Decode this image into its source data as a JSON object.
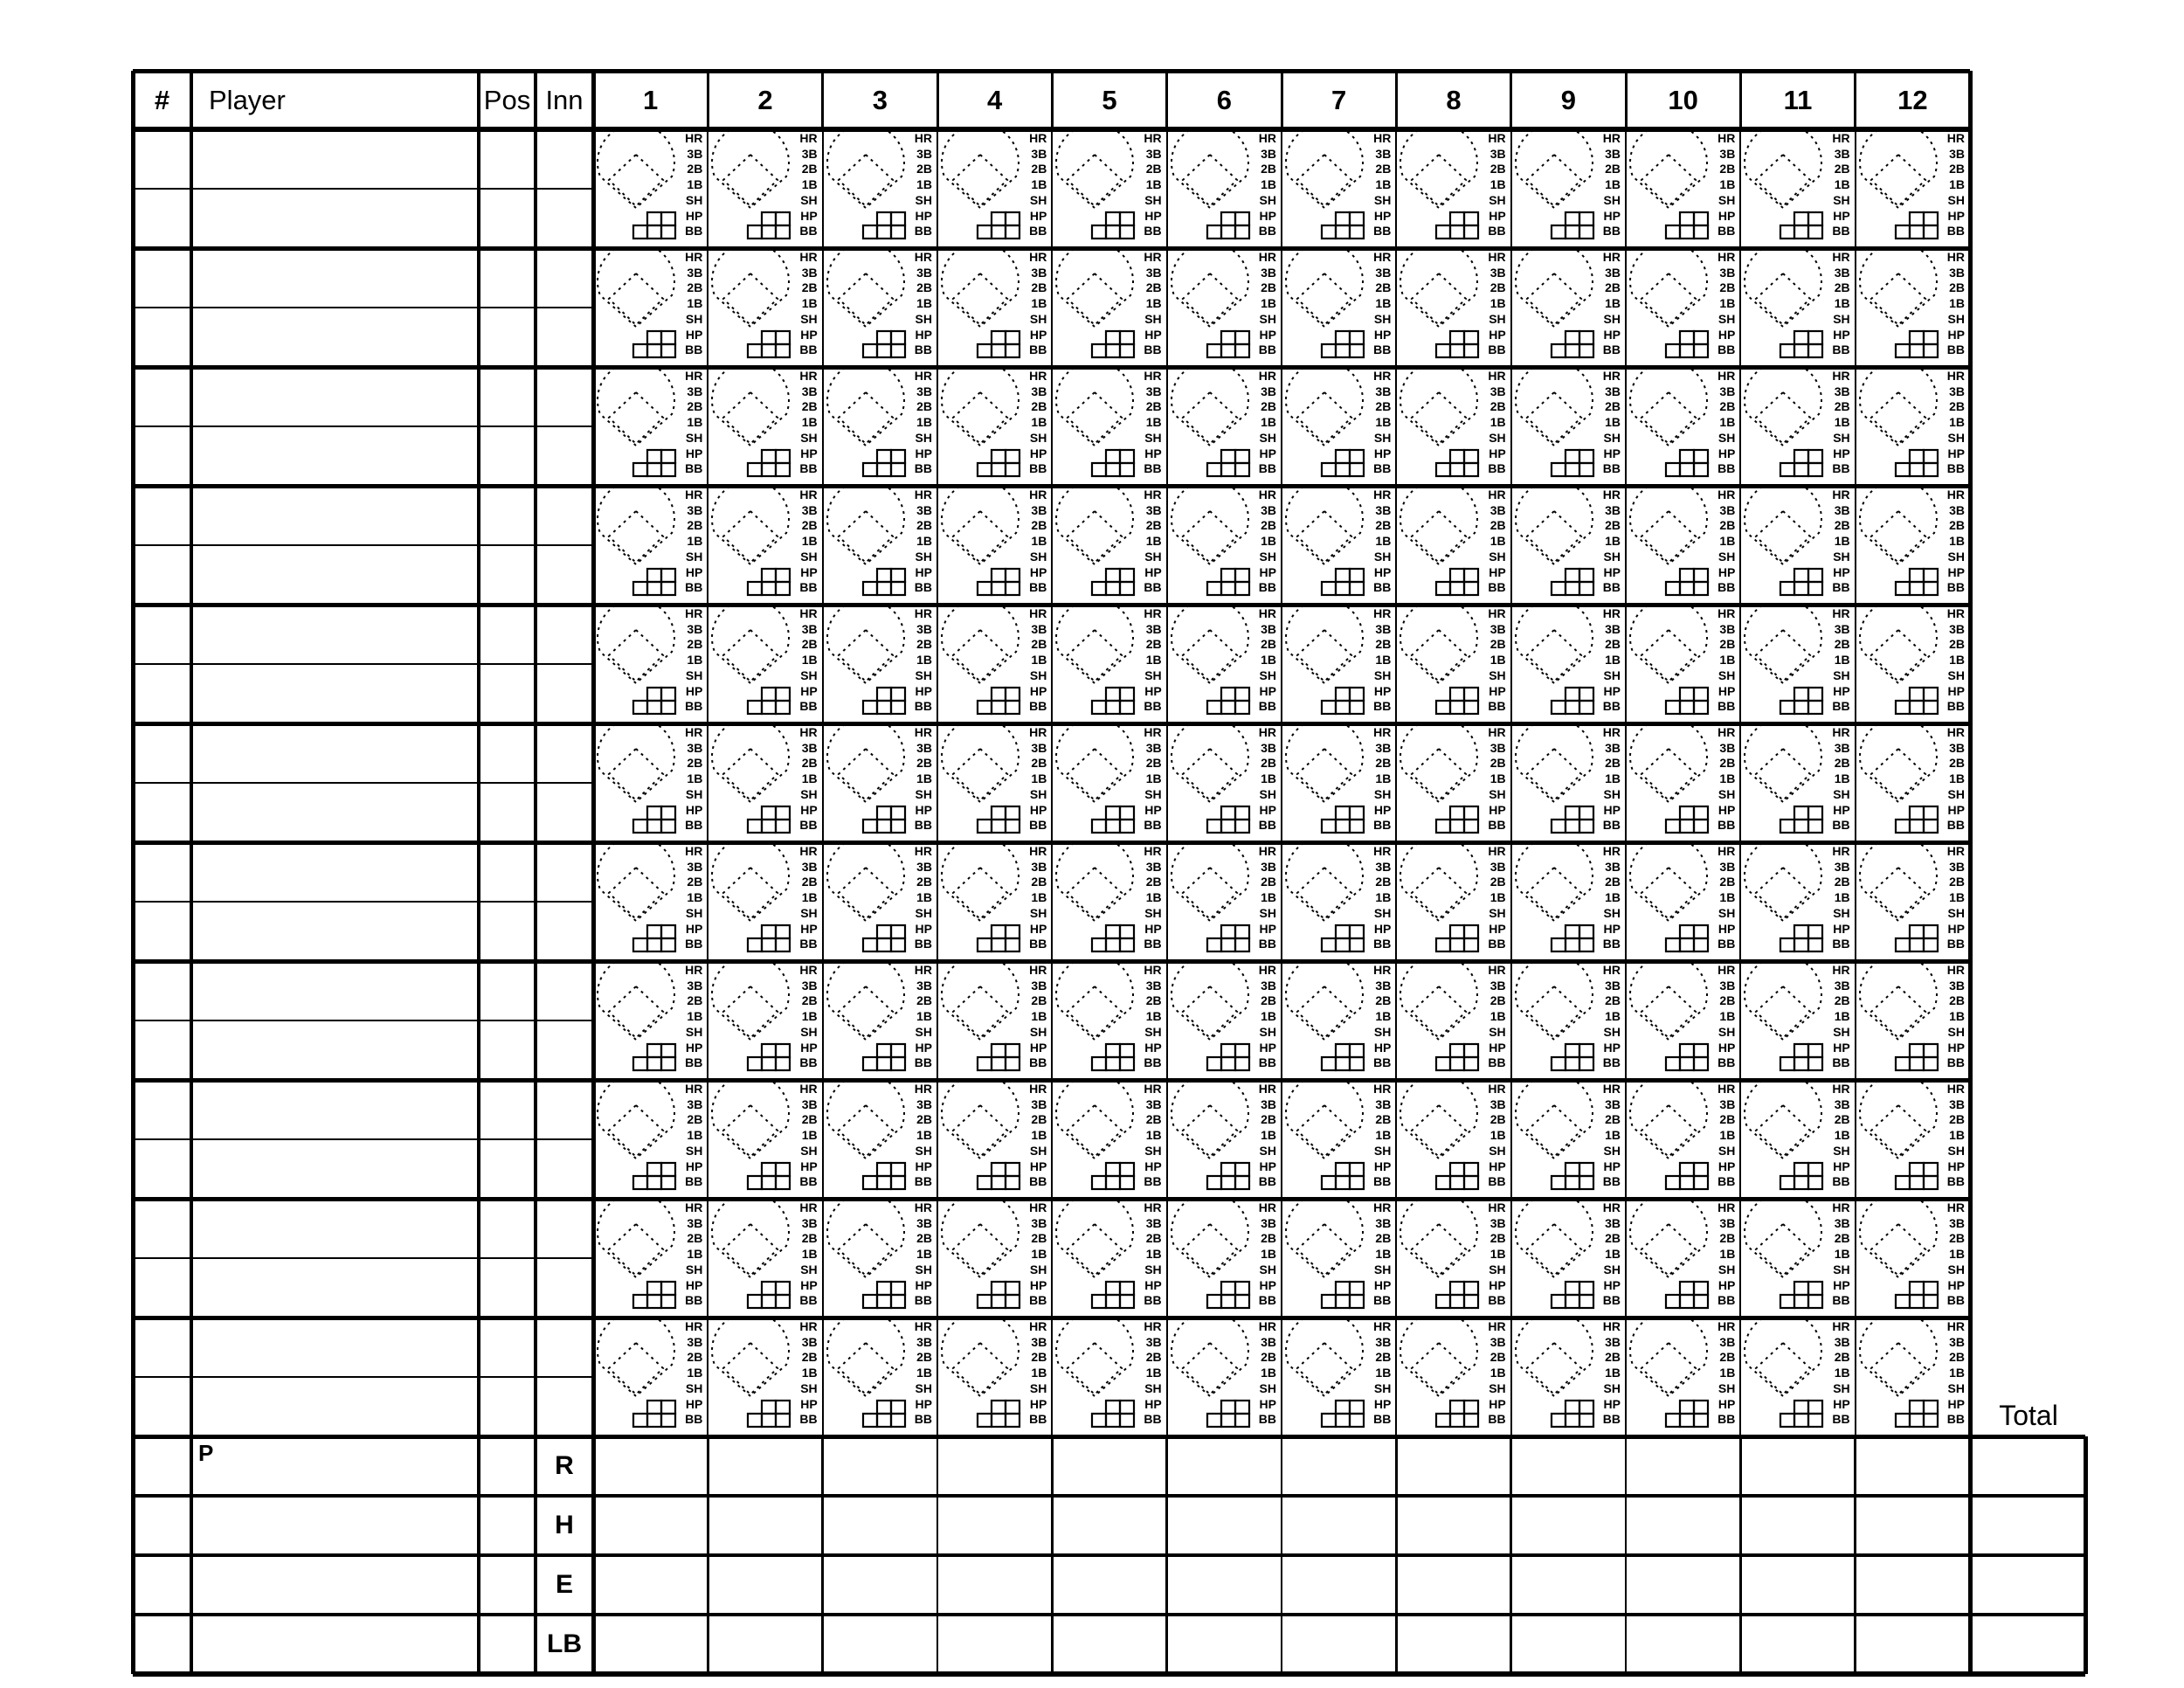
{
  "header": {
    "number": "#",
    "player": "Player",
    "pos": "Pos",
    "inn": "Inn",
    "innings": [
      "1",
      "2",
      "3",
      "4",
      "5",
      "6",
      "7",
      "8",
      "9",
      "10",
      "11",
      "12"
    ]
  },
  "lineup_slots": 11,
  "atbat_labels": [
    "HR",
    "3B",
    "2B",
    "1B",
    "SH",
    "HP",
    "BB"
  ],
  "footer": {
    "pitcher_label": "P",
    "rows": [
      "R",
      "H",
      "E",
      "LB"
    ],
    "total_label": "Total"
  }
}
